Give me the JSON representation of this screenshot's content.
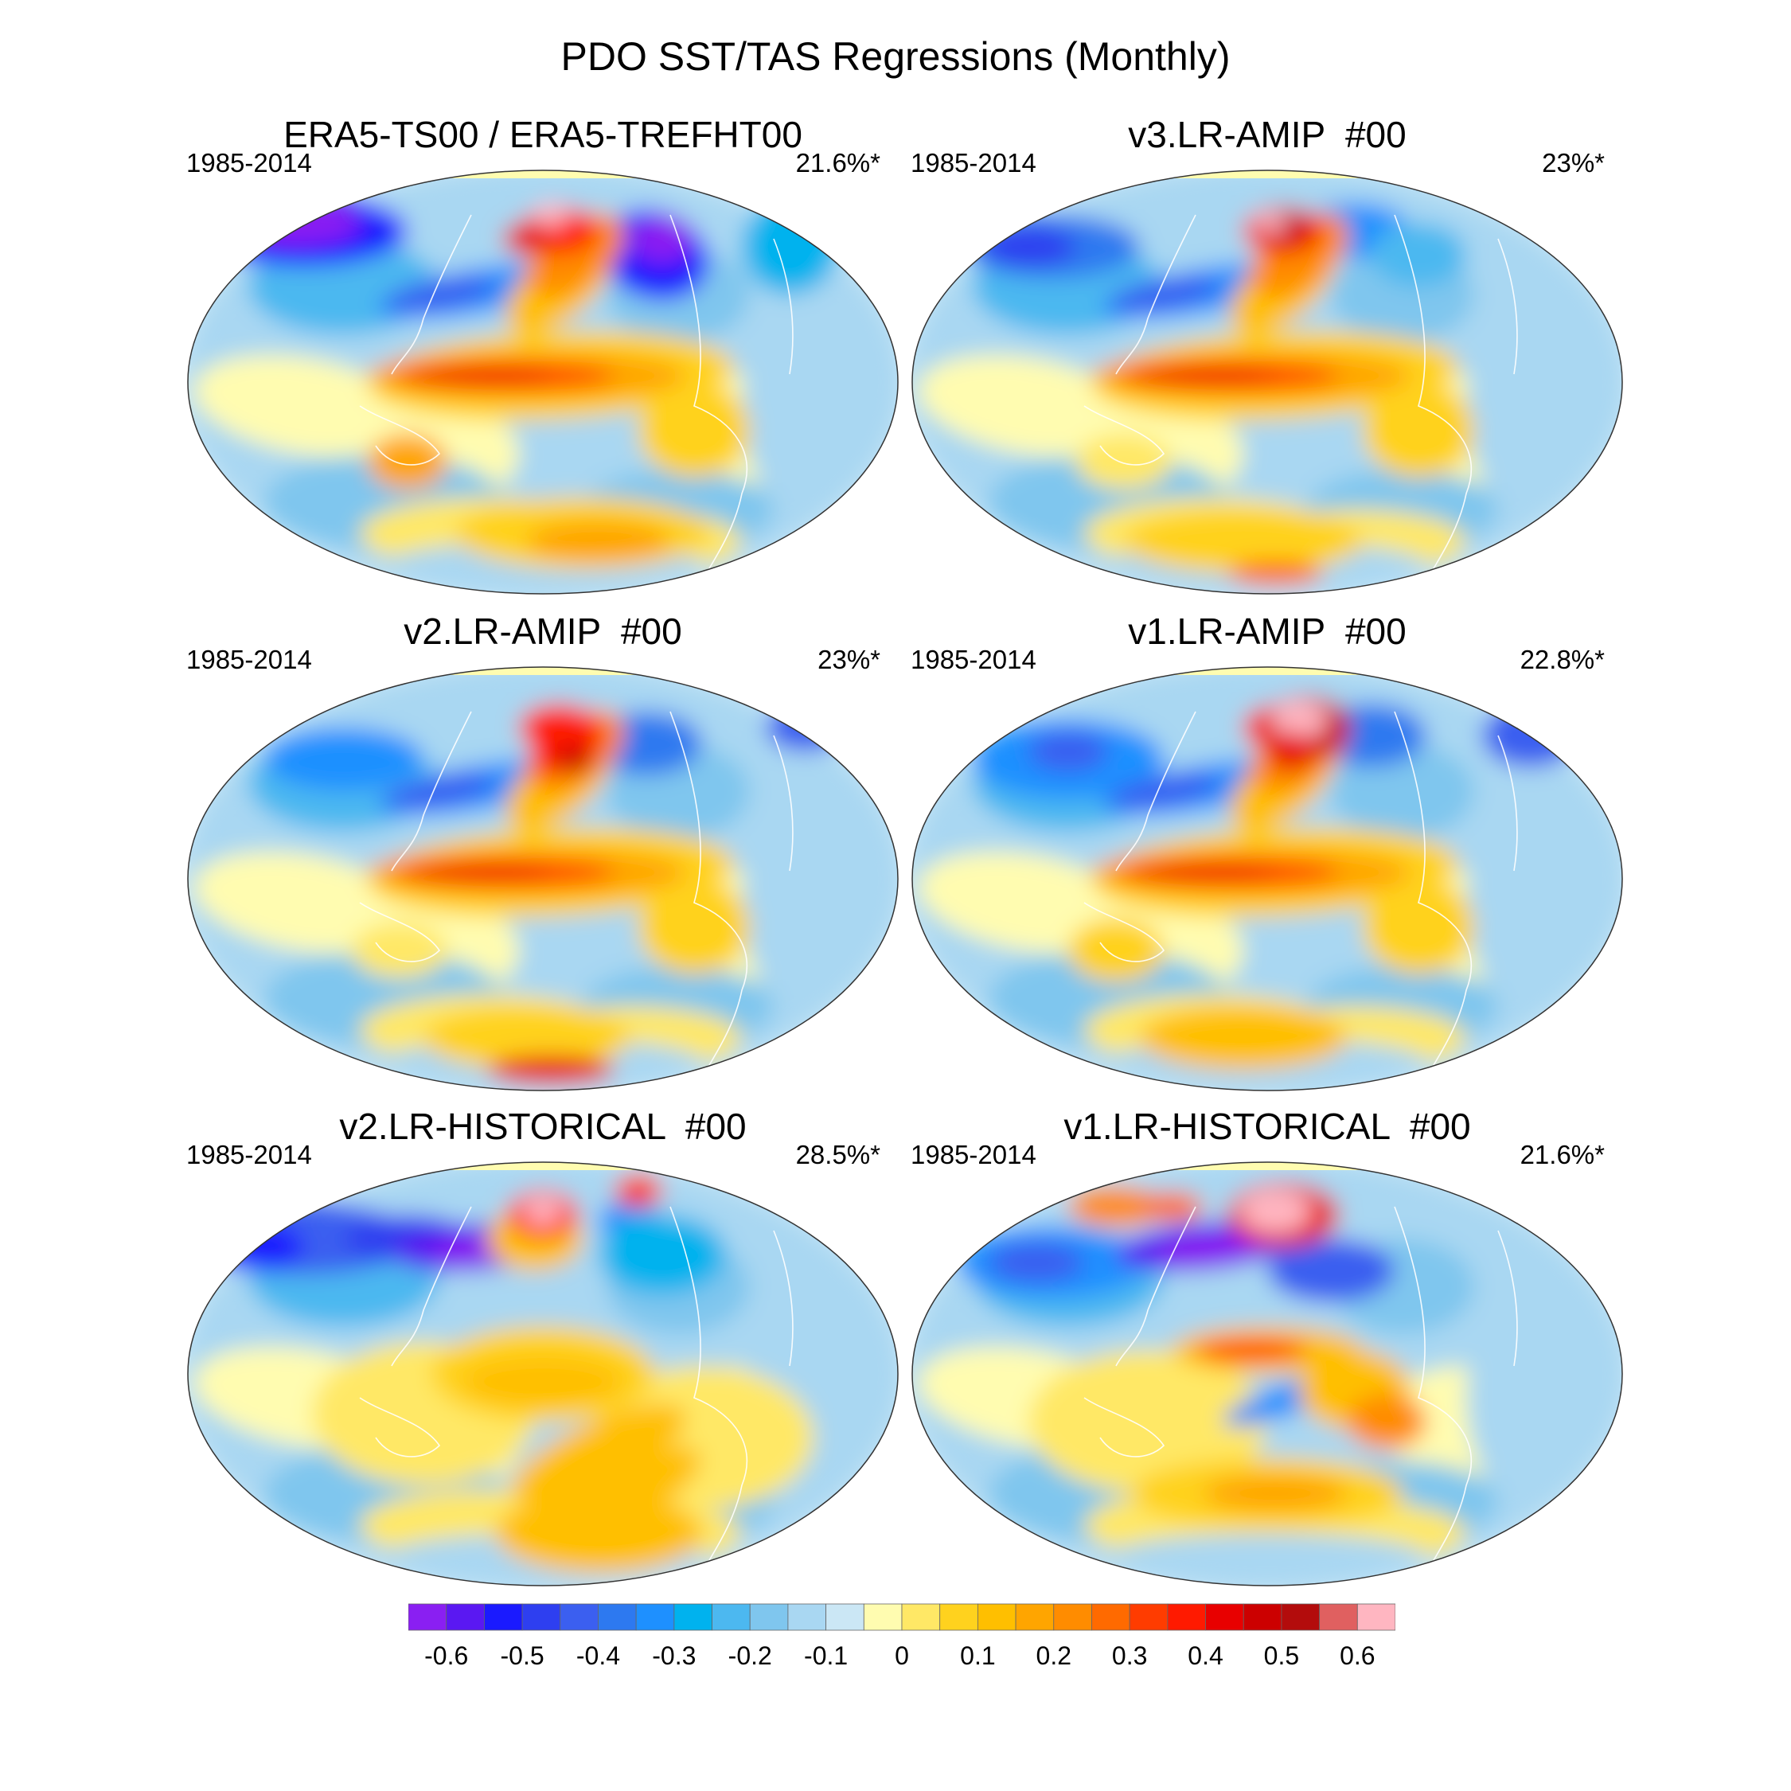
{
  "title": "PDO SST/TAS Regressions (Monthly)",
  "panels": [
    {
      "title": "ERA5-TS00 / ERA5-TREFHT00",
      "period": "1985-2014",
      "variance": "21.6%*"
    },
    {
      "title": "v3.LR-AMIP  #00",
      "period": "1985-2014",
      "variance": "23%*"
    },
    {
      "title": "v2.LR-AMIP  #00",
      "period": "1985-2014",
      "variance": "23%*"
    },
    {
      "title": "v1.LR-AMIP  #00",
      "period": "1985-2014",
      "variance": "22.8%*"
    },
    {
      "title": "v2.LR-HISTORICAL  #00",
      "period": "1985-2014",
      "variance": "28.5%*"
    },
    {
      "title": "v1.LR-HISTORICAL  #00",
      "period": "1985-2014",
      "variance": "21.6%*"
    }
  ],
  "colorbar": {
    "tick_labels": [
      "-0.6",
      "-0.5",
      "-0.4",
      "-0.3",
      "-0.2",
      "-0.1",
      "0",
      "0.1",
      "0.2",
      "0.3",
      "0.4",
      "0.5",
      "0.6"
    ],
    "colors": [
      "#8a1ff2",
      "#5a18f2",
      "#1a1aff",
      "#2e3ff0",
      "#3b5ff0",
      "#2d79f0",
      "#1e90ff",
      "#00b2ee",
      "#4cb8f0",
      "#7fc6ee",
      "#a9d7f2",
      "#cbe7f5",
      "#fffcb0",
      "#ffe866",
      "#ffd21e",
      "#ffbf00",
      "#ffa500",
      "#ff8c00",
      "#ff6a00",
      "#ff3c00",
      "#ff1a00",
      "#e80000",
      "#cc0000",
      "#b30c0c",
      "#e06060",
      "#ffb6c1"
    ]
  },
  "chart_data": {
    "type": "heatmap",
    "title": "PDO SST/TAS Regressions (Monthly)",
    "projection": "global Robinson-like ellipse",
    "panels": [
      "ERA5-TS00 / ERA5-TREFHT00",
      "v3.LR-AMIP  #00",
      "v2.LR-AMIP  #00",
      "v1.LR-AMIP  #00",
      "v2.LR-HISTORICAL  #00",
      "v1.LR-HISTORICAL  #00"
    ],
    "period": "1985-2014",
    "explained_variance": [
      "21.6%*",
      "23%*",
      "23%*",
      "22.8%*",
      "28.5%*",
      "21.6%*"
    ],
    "colorbar_range": [
      -0.65,
      0.65
    ],
    "colorbar_step": 0.05
  }
}
